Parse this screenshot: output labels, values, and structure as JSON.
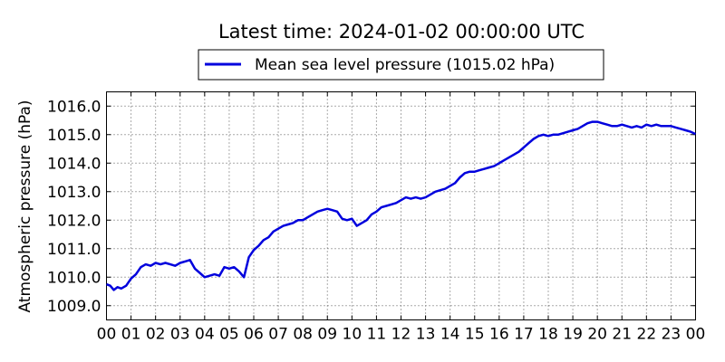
{
  "chart_data": {
    "type": "line",
    "title": "Latest time: 2024-01-02 00:00:00 UTC",
    "xlabel": "",
    "ylabel": "Atmospheric pressure (hPa)",
    "legend": {
      "placement": "top-center",
      "entries": [
        "Mean sea level pressure (1015.02 hPa)"
      ]
    },
    "grid": true,
    "xlim": [
      0,
      24
    ],
    "ylim": [
      1008.5,
      1016.5
    ],
    "x_ticks": [
      "00",
      "01",
      "02",
      "03",
      "04",
      "05",
      "06",
      "07",
      "08",
      "09",
      "10",
      "11",
      "12",
      "13",
      "14",
      "15",
      "16",
      "17",
      "18",
      "19",
      "20",
      "21",
      "22",
      "23",
      "00"
    ],
    "y_ticks": [
      "1009.0",
      "1010.0",
      "1011.0",
      "1012.0",
      "1013.0",
      "1014.0",
      "1015.0",
      "1016.0"
    ],
    "series": [
      {
        "name": "Mean sea level pressure (1015.02 hPa)",
        "color": "#0000dd",
        "x": [
          0,
          0.15,
          0.3,
          0.45,
          0.6,
          0.8,
          1.0,
          1.2,
          1.4,
          1.6,
          1.8,
          2.0,
          2.2,
          2.4,
          2.6,
          2.8,
          3.0,
          3.2,
          3.4,
          3.6,
          3.8,
          4.0,
          4.2,
          4.4,
          4.6,
          4.8,
          5.0,
          5.2,
          5.4,
          5.6,
          5.8,
          6.0,
          6.2,
          6.4,
          6.6,
          6.8,
          7.0,
          7.2,
          7.4,
          7.6,
          7.8,
          8.0,
          8.2,
          8.4,
          8.6,
          8.8,
          9.0,
          9.2,
          9.4,
          9.6,
          9.8,
          10.0,
          10.2,
          10.4,
          10.6,
          10.8,
          11.0,
          11.2,
          11.4,
          11.6,
          11.8,
          12.0,
          12.2,
          12.4,
          12.6,
          12.8,
          13.0,
          13.2,
          13.4,
          13.6,
          13.8,
          14.0,
          14.2,
          14.4,
          14.6,
          14.8,
          15.0,
          15.2,
          15.4,
          15.6,
          15.8,
          16.0,
          16.2,
          16.4,
          16.6,
          16.8,
          17.0,
          17.2,
          17.4,
          17.6,
          17.8,
          18.0,
          18.2,
          18.4,
          18.6,
          18.8,
          19.0,
          19.2,
          19.4,
          19.6,
          19.8,
          20.0,
          20.2,
          20.4,
          20.6,
          20.8,
          21.0,
          21.2,
          21.4,
          21.6,
          21.8,
          22.0,
          22.2,
          22.4,
          22.6,
          22.8,
          23.0,
          23.2,
          23.4,
          23.6,
          23.8,
          24.0
        ],
        "y": [
          1009.75,
          1009.7,
          1009.55,
          1009.65,
          1009.6,
          1009.7,
          1009.95,
          1010.1,
          1010.35,
          1010.45,
          1010.4,
          1010.5,
          1010.45,
          1010.5,
          1010.45,
          1010.4,
          1010.5,
          1010.55,
          1010.6,
          1010.3,
          1010.15,
          1010.0,
          1010.05,
          1010.1,
          1010.05,
          1010.35,
          1010.3,
          1010.35,
          1010.2,
          1010.0,
          1010.7,
          1010.95,
          1011.1,
          1011.3,
          1011.4,
          1011.6,
          1011.7,
          1011.8,
          1011.85,
          1011.9,
          1012.0,
          1012.0,
          1012.1,
          1012.2,
          1012.3,
          1012.35,
          1012.4,
          1012.35,
          1012.3,
          1012.05,
          1012.0,
          1012.05,
          1011.8,
          1011.9,
          1012.0,
          1012.2,
          1012.3,
          1012.45,
          1012.5,
          1012.55,
          1012.6,
          1012.7,
          1012.8,
          1012.75,
          1012.8,
          1012.75,
          1012.8,
          1012.9,
          1013.0,
          1013.05,
          1013.1,
          1013.2,
          1013.3,
          1013.5,
          1013.65,
          1013.7,
          1013.7,
          1013.75,
          1013.8,
          1013.85,
          1013.9,
          1014.0,
          1014.1,
          1014.2,
          1014.3,
          1014.4,
          1014.55,
          1014.7,
          1014.85,
          1014.95,
          1015.0,
          1014.95,
          1015.0,
          1015.0,
          1015.05,
          1015.1,
          1015.15,
          1015.2,
          1015.3,
          1015.4,
          1015.45,
          1015.45,
          1015.4,
          1015.35,
          1015.3,
          1015.3,
          1015.35,
          1015.3,
          1015.25,
          1015.3,
          1015.25,
          1015.35,
          1015.3,
          1015.35,
          1015.3,
          1015.3,
          1015.3,
          1015.25,
          1015.2,
          1015.15,
          1015.1,
          1015.02
        ]
      }
    ]
  }
}
